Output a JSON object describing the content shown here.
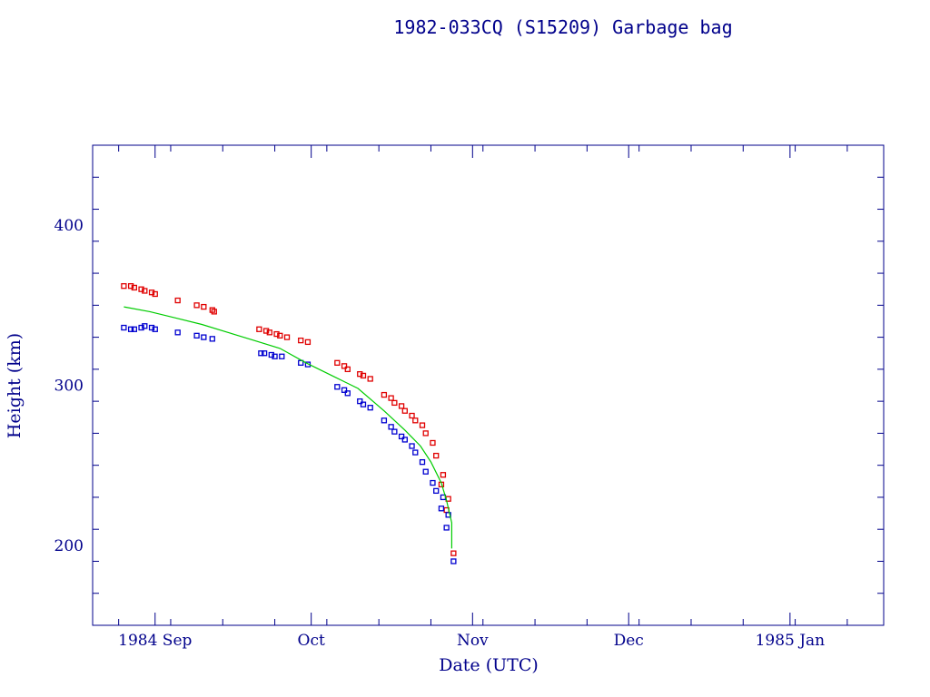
{
  "chart_data": {
    "type": "scatter",
    "title": "1982-033CQ (S15209) Garbage bag",
    "xlabel": "Date (UTC)",
    "ylabel": "Height (km)",
    "xlim": [
      "1984-08-20",
      "1985-01-19"
    ],
    "ylim": [
      150,
      450
    ],
    "x_ticks": [
      "1984 Sep",
      "Oct",
      "Nov",
      "Dec",
      "1985 Jan"
    ],
    "y_ticks": [
      200,
      300,
      400
    ],
    "grid": false,
    "legend": "none",
    "series": [
      {
        "color": "#e00000",
        "points": [
          [
            "1984-08-26",
            362
          ],
          [
            "1984-08-27",
            362
          ],
          [
            "1984-08-28",
            361
          ],
          [
            "1984-08-29",
            360
          ],
          [
            "1984-08-30",
            359
          ],
          [
            "1984-08-31",
            358
          ],
          [
            "1984-09-01",
            357
          ],
          [
            "1984-09-05",
            353
          ],
          [
            "1984-09-09",
            350
          ],
          [
            "1984-09-10",
            349
          ],
          [
            "1984-09-12",
            347
          ],
          [
            "1984-09-12",
            346
          ],
          [
            "1984-09-21",
            335
          ],
          [
            "1984-09-22",
            334
          ],
          [
            "1984-09-23",
            333
          ],
          [
            "1984-09-24",
            332
          ],
          [
            "1984-09-25",
            331
          ],
          [
            "1984-09-26",
            330
          ],
          [
            "1984-09-29",
            328
          ],
          [
            "1984-09-30",
            327
          ],
          [
            "1984-10-06",
            314
          ],
          [
            "1984-10-07",
            312
          ],
          [
            "1984-10-08",
            310
          ],
          [
            "1984-10-10",
            307
          ],
          [
            "1984-10-11",
            306
          ],
          [
            "1984-10-12",
            304
          ],
          [
            "1984-10-15",
            294
          ],
          [
            "1984-10-16",
            292
          ],
          [
            "1984-10-17",
            289
          ],
          [
            "1984-10-18",
            287
          ],
          [
            "1984-10-19",
            284
          ],
          [
            "1984-10-20",
            281
          ],
          [
            "1984-10-21",
            278
          ],
          [
            "1984-10-22",
            275
          ],
          [
            "1984-10-23",
            270
          ],
          [
            "1984-10-24",
            264
          ],
          [
            "1984-10-25",
            256
          ],
          [
            "1984-10-26",
            244
          ],
          [
            "1984-10-26",
            238
          ],
          [
            "1984-10-27",
            229
          ],
          [
            "1984-10-27",
            222
          ],
          [
            "1984-10-28",
            195
          ]
        ]
      },
      {
        "color": "#0000d0",
        "points": [
          [
            "1984-08-26",
            336
          ],
          [
            "1984-08-27",
            335
          ],
          [
            "1984-08-28",
            335
          ],
          [
            "1984-08-29",
            336
          ],
          [
            "1984-08-30",
            337
          ],
          [
            "1984-08-31",
            336
          ],
          [
            "1984-09-01",
            335
          ],
          [
            "1984-09-05",
            333
          ],
          [
            "1984-09-09",
            331
          ],
          [
            "1984-09-10",
            330
          ],
          [
            "1984-09-12",
            329
          ],
          [
            "1984-09-21",
            320
          ],
          [
            "1984-09-22",
            320
          ],
          [
            "1984-09-23",
            319
          ],
          [
            "1984-09-24",
            318
          ],
          [
            "1984-09-25",
            318
          ],
          [
            "1984-09-29",
            314
          ],
          [
            "1984-09-30",
            313
          ],
          [
            "1984-10-06",
            299
          ],
          [
            "1984-10-07",
            297
          ],
          [
            "1984-10-08",
            295
          ],
          [
            "1984-10-10",
            290
          ],
          [
            "1984-10-11",
            288
          ],
          [
            "1984-10-12",
            286
          ],
          [
            "1984-10-15",
            278
          ],
          [
            "1984-10-16",
            274
          ],
          [
            "1984-10-17",
            271
          ],
          [
            "1984-10-18",
            268
          ],
          [
            "1984-10-19",
            266
          ],
          [
            "1984-10-20",
            262
          ],
          [
            "1984-10-21",
            258
          ],
          [
            "1984-10-22",
            252
          ],
          [
            "1984-10-23",
            246
          ],
          [
            "1984-10-24",
            239
          ],
          [
            "1984-10-25",
            234
          ],
          [
            "1984-10-26",
            230
          ],
          [
            "1984-10-26",
            223
          ],
          [
            "1984-10-27",
            219
          ],
          [
            "1984-10-27",
            211
          ],
          [
            "1984-10-28",
            190
          ]
        ]
      },
      {
        "color": "#00cc00",
        "line": true,
        "points": [
          [
            "1984-08-26",
            349
          ],
          [
            "1984-08-31",
            346
          ],
          [
            "1984-09-05",
            342
          ],
          [
            "1984-09-10",
            338
          ],
          [
            "1984-09-15",
            333
          ],
          [
            "1984-09-20",
            328
          ],
          [
            "1984-09-25",
            323
          ],
          [
            "1984-09-30",
            314
          ],
          [
            "1984-10-05",
            306
          ],
          [
            "1984-10-10",
            298
          ],
          [
            "1984-10-15",
            284
          ],
          [
            "1984-10-19",
            272
          ],
          [
            "1984-10-22",
            262
          ],
          [
            "1984-10-24",
            252
          ],
          [
            "1984-10-26",
            239
          ],
          [
            "1984-10-27",
            228
          ],
          [
            "1984-10-28",
            214
          ],
          [
            "1984-10-28",
            198
          ]
        ]
      }
    ]
  }
}
